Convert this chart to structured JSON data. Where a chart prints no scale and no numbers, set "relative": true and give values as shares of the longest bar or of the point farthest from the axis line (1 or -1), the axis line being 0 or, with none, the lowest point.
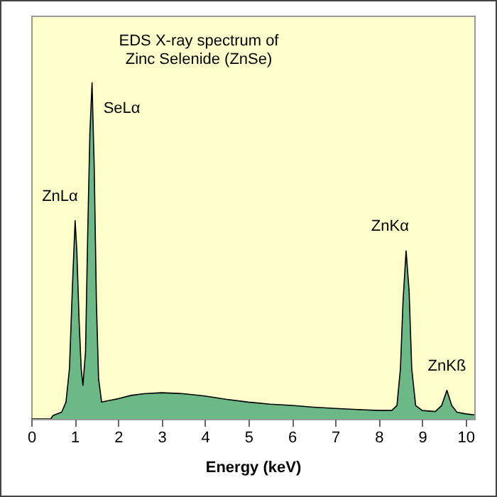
{
  "chart_data": {
    "type": "area",
    "title": [
      "EDS X-ray spectrum of",
      "Zinc Selenide (ZnSe)"
    ],
    "xlabel": "Energy (keV)",
    "relative": true,
    "grid": false,
    "xlim": [
      0,
      10.2
    ],
    "xticks": [
      0,
      1,
      2,
      3,
      4,
      5,
      6,
      7,
      8,
      9,
      10
    ],
    "x": [
      0,
      0.45,
      0.5,
      0.7,
      0.8,
      0.88,
      0.95,
      1.01,
      1.05,
      1.1,
      1.15,
      1.19,
      1.25,
      1.3,
      1.35,
      1.4,
      1.45,
      1.5,
      1.55,
      1.62,
      1.8,
      2.0,
      2.3,
      2.6,
      3.0,
      3.5,
      4.0,
      4.5,
      5.0,
      5.5,
      6.0,
      6.5,
      7.0,
      7.5,
      8.0,
      8.3,
      8.42,
      8.5,
      8.56,
      8.63,
      8.7,
      8.76,
      8.85,
      9.0,
      9.3,
      9.45,
      9.57,
      9.68,
      9.8,
      10.0,
      10.2
    ],
    "series": [
      {
        "color": "#2e9b6a",
        "values": [
          0,
          0,
          0.01,
          0.02,
          0.05,
          0.15,
          0.4,
          0.59,
          0.5,
          0.3,
          0.15,
          0.1,
          0.2,
          0.55,
          0.85,
          1,
          0.75,
          0.35,
          0.12,
          0.05,
          0.055,
          0.06,
          0.07,
          0.075,
          0.078,
          0.075,
          0.068,
          0.058,
          0.05,
          0.044,
          0.04,
          0.035,
          0.031,
          0.028,
          0.025,
          0.025,
          0.04,
          0.15,
          0.35,
          0.5,
          0.38,
          0.15,
          0.04,
          0.025,
          0.022,
          0.04,
          0.085,
          0.04,
          0.02,
          0.015,
          0.012
        ]
      }
    ],
    "annotations": [
      {
        "text": "ZnLα",
        "x": 1.01,
        "y": 0.59
      },
      {
        "text": "SeLα",
        "x": 1.4,
        "y": 1
      },
      {
        "text": "ZnKα",
        "x": 8.63,
        "y": 0.5
      },
      {
        "text": "ZnKß",
        "x": 9.57,
        "y": 0.085
      }
    ]
  }
}
